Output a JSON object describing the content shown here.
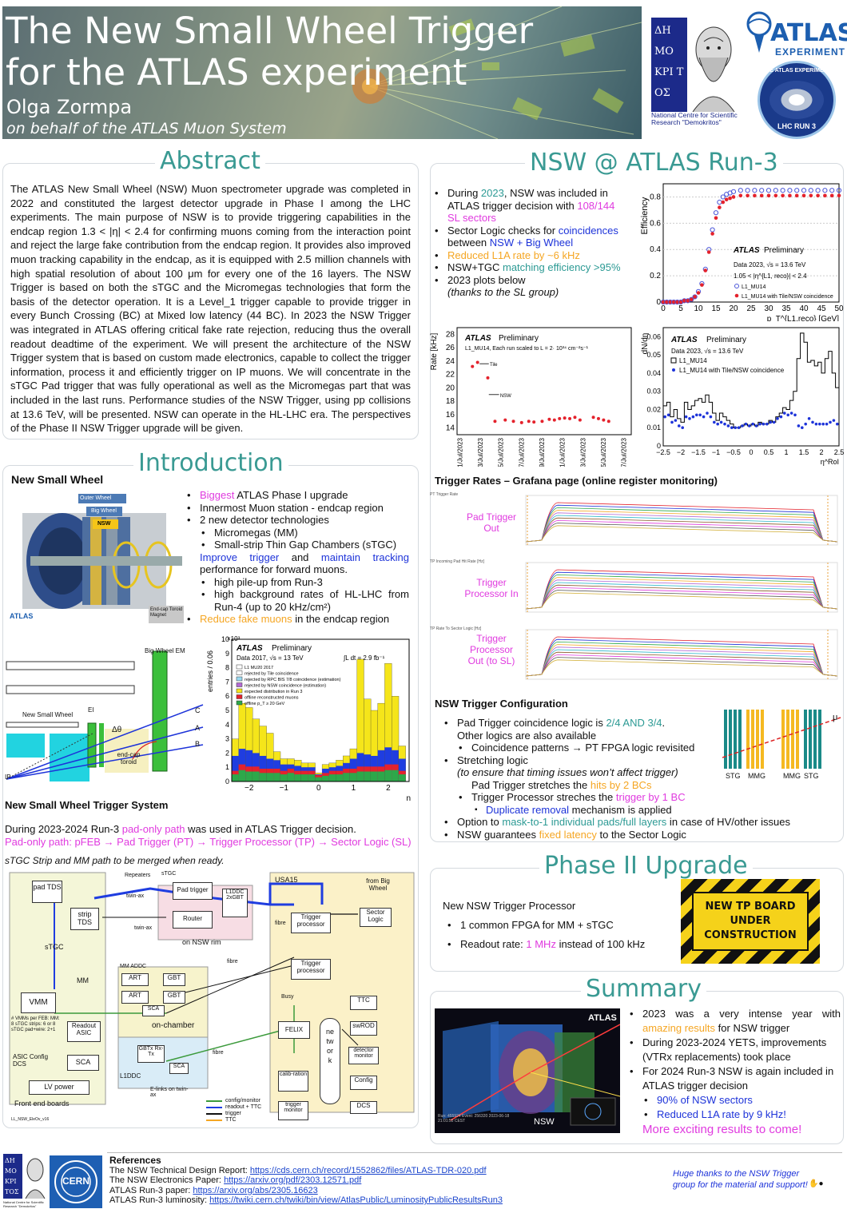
{
  "header": {
    "title_line1": "The New Small Wheel Trigger",
    "title_line2": "for the ATLAS experiment",
    "author": "Olga Zormpa",
    "affiliation": "on behalf of the ATLAS Muon System"
  },
  "logos": {
    "demokritos_caption": "National Centre for Scientific Research \"Demokritos\"",
    "demokritos_letters": "ΔΗ ΜΟ ΚΡΙ ΤΟΣ",
    "atlas_name": "ATLAS",
    "atlas_sub": "EXPERIMENT",
    "run3_badge_top": "THE ATLAS EXPERIMENT",
    "run3_badge_bottom": "LHC RUN 3",
    "cern": "CERN"
  },
  "abstract": {
    "heading": "Abstract",
    "text": "The ATLAS New Small Wheel (NSW) Muon spectrometer upgrade was completed in 2022 and constituted the largest detector upgrade in Phase I among the LHC experiments. The main purpose of NSW is to provide triggering capabilities in the endcap region 1.3 < |η| < 2.4 for confirming muons coming from the interaction point and reject the large fake contribution from the endcap region. It provides also improved muon tracking capability in the endcap, as it is equipped with 2.5 million channels with high spatial resolution of about 100 μm for every one of the 16 layers. The NSW Trigger is based on both the sTGC and the Micromegas technologies that form the basis of the detector operation. It is a Level_1 trigger capable to provide trigger in every Bunch Crossing (BC) at Mixed low latency (44 BC). In 2023 the NSW Trigger was integrated in ATLAS offering critical fake rate rejection, reducing thus the overall readout deadtime of the experiment. We will present the architecture of the NSW Trigger system that is based on custom made electronics, capable to collect the trigger information, process it and efficiently trigger on IP muons. We will concentrate in the sTGC Pad trigger that was fully operational as well as the Micromegas part that was included in the last runs. Performance studies of the NSW Trigger, using pp collisions at 13.6 TeV, will be presented. NSW can operate in the HL-LHC era. The perspectives of the Phase II NSW Trigger upgrade will be given."
  },
  "introduction": {
    "heading": "Introduction",
    "nsw_title": "New Small Wheel",
    "bullets": {
      "b1a": "Biggest",
      "b1b": " ATLAS Phase I upgrade",
      "b2": "Innermost Muon station - endcap region",
      "b3": "2 new detector technologies",
      "b3a": "Micromegas (MM)",
      "b3b": "Small-strip Thin Gap Chambers (sTGC)",
      "b4a": "Improve trigger",
      "b4b": " and ",
      "b4c": "maintain tracking",
      "b4d": " performance for forward muons.",
      "b4e": "high pile-up from Run-3",
      "b4f": "high background rates of HL-LHC from Run-4 (up to 20 kHz/cm²)",
      "b5a": "Reduce fake muons",
      "b5b": " in the endcap region"
    },
    "detector_labels": {
      "outer": "Outer Wheel",
      "big": "Big Wheel",
      "nsw": "NSW",
      "endcap": "End-cap Toroid Magnet",
      "atlas": "ATLAS",
      "atlas_sub": "EXPERIMENT"
    },
    "geometry_labels": {
      "bigwheel": "Big Wheel EM",
      "nsw": "New Small Wheel",
      "ei": "EI",
      "dtheta": "Δθ",
      "toroid": "end-cap toroid",
      "c": "C",
      "a": "A",
      "b": "B",
      "ip": "IP"
    },
    "sys_title": "New Small Wheel Trigger System",
    "sys_text1a": "During 2023-2024 Run-3 ",
    "sys_text1b": "pad-only path",
    "sys_text1c": " was used in ATLAS Trigger decision.",
    "sys_text2": "Pad-only path: pFEB → Pad Trigger (PT) → Trigger Processor (TP) → Sector Logic (SL)",
    "sys_text3": "sTGC Strip and MM path to be merged when ready."
  },
  "eta_hist": {
    "exp": "ATLAS",
    "prelim": "Preliminary",
    "data": "Data 2017,  √s = 13 TeV",
    "lumi": "∫L dt = 2.9 fb⁻¹",
    "ylabel": "entries / 0.06",
    "xlabel": "η",
    "scale": "×10³",
    "legend": [
      "L1 MU20 2017",
      "rejected by Tile coincidence",
      "rejected by RPC BIS 7/8 coincidence (estimation)",
      "rejected by NSW coincidence (estimation)",
      "expected distribution in Run 3",
      "offline reconstructed muons",
      "offline p_T ≥ 20 GeV"
    ],
    "ticks_x": [
      "−2",
      "−1",
      "0",
      "1",
      "2"
    ],
    "ticks_y": [
      "0",
      "1",
      "2",
      "3",
      "4",
      "5",
      "6",
      "7",
      "8",
      "9",
      "10"
    ]
  },
  "diagram": {
    "pad_tds": "pad TDS",
    "strip_tds": "strip TDS",
    "vmm": "VMM",
    "readout_asic": "Readout ASIC",
    "sca": "SCA",
    "lv": "LV power",
    "feb": "Front end boards",
    "stgc": "sTGC",
    "mm": "MM",
    "twin": "twin-ax",
    "pad_trigger": "Pad trigger",
    "router": "Router",
    "l1ddc": "L1DDC 2xGBT",
    "nsw_rim": "on NSW rim",
    "repeaters": "Repeaters",
    "mm_addc": "MM ADDC",
    "art": "ART",
    "gbt": "GBT",
    "gbtx": "GBTx Rx-Tx",
    "onchamber": "on-chamber",
    "l1ddc2": "L1DDC",
    "elinks": "E-links on twin-ax",
    "usa15": "USA15",
    "trigger_processor": "Trigger processor",
    "sector_logic": "Sector Logic",
    "big_wheel": "from Big Wheel",
    "felix": "FELIX",
    "network": "network",
    "ttc": "TTC",
    "swrod": "swROD",
    "detmon": "detector monitor",
    "config": "Config",
    "dcs": "DCS",
    "calib": "calib-ration",
    "trigmon": "trigger monitor",
    "fibre": "fibre",
    "busy": "Busy",
    "asic_cfg": "ASIC Config DCS",
    "vmm_note": "# VMMs per FEB: MM: 8 sTGC strips: 6 or 8 sTGC pad+wire: 2+1",
    "legend": [
      "config/monitor",
      "readout + TTC",
      "trigger",
      "TTC"
    ],
    "footer": "LL_NSW_EleOv_v16"
  },
  "run3": {
    "heading": "NSW @ ATLAS Run-3",
    "b1a": "During ",
    "b1b": "2023",
    "b1c": ", NSW was included in ATLAS trigger decision with ",
    "b1d": "108/144 SL sectors",
    "b2a": "Sector Logic checks for ",
    "b2b": "coincidences",
    "b2c": " between ",
    "b2d": "NSW + Big Wheel",
    "b3": "Reduced L1A rate by  ~6 kHz",
    "b4a": "NSW+TGC ",
    "b4b": "matching efficiency >95%",
    "b5": "2023 plots below",
    "b5b": "(thanks to the SL group)"
  },
  "eff_plot": {
    "exp": "ATLAS",
    "prelim": "Preliminary",
    "data": "Data 2023, √s = 13.6 TeV",
    "cut": "1.05 < |η^{L1, reco}| < 2.4",
    "series_a": "L1_MU14",
    "series_b": "L1_MU14 with Tile/NSW coincidence",
    "ylabel": "Efficiency",
    "xlabel": "p_T^{L1,reco} [GeV]",
    "ticks_x": [
      "0",
      "5",
      "10",
      "15",
      "20",
      "25",
      "30",
      "35",
      "40",
      "45",
      "50"
    ],
    "ticks_y": [
      "0",
      "0.2",
      "0.4",
      "0.6",
      "0.8"
    ]
  },
  "rate_plot": {
    "exp": "ATLAS",
    "prelim": "Preliminary",
    "note": "L1_MU14, Each run scaled to L = 2· 10³⁴ cm⁻²s⁻¹",
    "ylabel": "Rate [kHz]",
    "tile_label": "Tile",
    "nsw_label": "NSW",
    "ticks_y": [
      "14",
      "16",
      "18",
      "20",
      "22",
      "24",
      "26",
      "28"
    ],
    "ticks_x": [
      "1/Jul/2023",
      "3/Jul/2023",
      "5/Jul/2023",
      "7/Jul/2023",
      "9/Jul/2023",
      "11/Jul/2023",
      "13/Jul/2023",
      "15/Jul/2023",
      "17/Jul/2023"
    ]
  },
  "dndeta_plot": {
    "exp": "ATLAS",
    "prelim": "Preliminary",
    "data": "Data 2023, √s = 13.6 TeV",
    "series_a": "L1_MU14",
    "series_b": "L1_MU14 with Tile/NSW coincidence",
    "ylabel": "dN/dη",
    "xlabel": "η^RoI",
    "ticks_x": [
      "−2.5",
      "−2",
      "−1.5",
      "−1",
      "−0.5",
      "0",
      "0.5",
      "1",
      "1.5",
      "2",
      "2.5"
    ],
    "ticks_y": [
      "0",
      "0.01",
      "0.02",
      "0.03",
      "0.04",
      "0.05",
      "0.06"
    ]
  },
  "grafana": {
    "title": "Trigger Rates – Grafana page (online register monitoring)",
    "panels": [
      {
        "label": "Pad Trigger Out",
        "header": "PT Trigger Rate"
      },
      {
        "label": "Trigger Processor In",
        "header": "TP Incoming Pad Hit Rate [Hz]"
      },
      {
        "label": "Trigger Processor Out (to SL)",
        "header": "TP Rate To Sector Logic [Hz]"
      }
    ]
  },
  "config": {
    "title": "NSW Trigger Configuration",
    "c1a": "Pad Trigger coincidence logic is ",
    "c1b": "2/4 AND 3/4",
    "c1c": ".",
    "c1d": "Other logics are also available",
    "c2": "Coincidence patterns → PT FPGA logic revisited",
    "c3": "Stretching logic",
    "c3b": "(to ensure that timing issues won’t affect trigger)",
    "c4a": "Pad Trigger stretches the ",
    "c4b": "hits by 2 BCs",
    "c5a": "Trigger Processor streches the ",
    "c5b": "trigger by 1 BC",
    "c6a": "Duplicate removal",
    "c6b": " mechanism is applied",
    "c7a": "Option to ",
    "c7b": "mask-to-1 individual pads/full layers",
    "c7c": " in case of HV/other issues",
    "c8a": "NSW guarantees ",
    "c8b": "fixed latency",
    "c8c": " to the Sector Logic",
    "layers": [
      "STG",
      "MMG",
      "MMG",
      "STG"
    ],
    "mu": "μ"
  },
  "phase2": {
    "heading": "Phase II Upgrade",
    "title": "New NSW Trigger Processor",
    "b1": "1 common FPGA for MM + sTGC",
    "b2a": "Readout rate: ",
    "b2b": "1 MHz",
    "b2c": " instead of 100 kHz",
    "sign": "NEW TP BOARD UNDER CONSTRUCTION"
  },
  "summary": {
    "heading": "Summary",
    "s1a": "2023 was a very intense year with ",
    "s1b": "amazing results",
    "s1c": " for NSW trigger",
    "s2": "During 2023-2024 YETS, improvements (VTRx replacements) took place",
    "s3": "For 2024 Run-3 NSW is again included in ATLAS trigger decision",
    "s4": "90% of NSW sectors",
    "s5": "Reduced L1A rate by 9 kHz!",
    "s6": "More exciting results to come!",
    "evt_nsw": "NSW",
    "evt_info": "Run: 455924  Event: 256320  2023-06-18 21:01:55 CEST"
  },
  "references": {
    "title": "References",
    "r1a": "The NSW Technical Design Report: ",
    "r1b": "https://cds.cern.ch/record/1552862/files/ATLAS-TDR-020.pdf",
    "r2a": "The NSW Electronics Paper: ",
    "r2b": "https://arxiv.org/pdf/2303.12571.pdf",
    "r3a": "ATLAS Run-3 paper: ",
    "r3b": "https://arxiv.org/abs/2305.16623",
    "r4a": "ATLAS Run-3 luminosity: ",
    "r4b": "https://twiki.cern.ch/twiki/bin/view/AtlasPublic/LuminosityPublicResultsRun3",
    "thanks": "Huge thanks to the NSW Trigger group for the material and support!"
  },
  "chart_data": [
    {
      "type": "scatter",
      "title": "",
      "xlabel": "p_T^{L1,reco} [GeV]",
      "ylabel": "Efficiency",
      "xlim": [
        0,
        50
      ],
      "ylim": [
        0,
        0.9
      ],
      "x": [
        0,
        1,
        2,
        3,
        4,
        5,
        6,
        7,
        8,
        9,
        10,
        11,
        12,
        13,
        14,
        15,
        16,
        17,
        18,
        19,
        20,
        22,
        24,
        26,
        28,
        30,
        32,
        34,
        36,
        38,
        40,
        42,
        44,
        46,
        48,
        50
      ],
      "series": [
        {
          "name": "L1_MU14",
          "values": [
            0.0,
            0.0,
            0.0,
            0.0,
            0.0,
            0.0,
            0.01,
            0.01,
            0.02,
            0.04,
            0.08,
            0.14,
            0.25,
            0.4,
            0.55,
            0.68,
            0.76,
            0.8,
            0.82,
            0.83,
            0.84,
            0.85,
            0.85,
            0.85,
            0.85,
            0.85,
            0.85,
            0.85,
            0.85,
            0.85,
            0.85,
            0.85,
            0.85,
            0.85,
            0.85,
            0.85
          ]
        },
        {
          "name": "L1_MU14 with Tile/NSW coincidence",
          "values": [
            0.0,
            0.0,
            0.0,
            0.0,
            0.0,
            0.0,
            0.01,
            0.01,
            0.02,
            0.04,
            0.07,
            0.13,
            0.24,
            0.38,
            0.52,
            0.64,
            0.72,
            0.76,
            0.78,
            0.79,
            0.8,
            0.81,
            0.81,
            0.81,
            0.81,
            0.81,
            0.81,
            0.81,
            0.81,
            0.81,
            0.81,
            0.81,
            0.81,
            0.81,
            0.81,
            0.81
          ]
        }
      ]
    },
    {
      "type": "scatter",
      "title": "",
      "ylabel": "Rate [kHz]",
      "xlabel": "",
      "ylim": [
        13,
        29
      ],
      "x": [
        "2/Jul/2023",
        "2.5/Jul/2023",
        "3.5/Jul/2023",
        "4.2/Jul/2023",
        "5.2/Jul/2023",
        "6/Jul/2023",
        "6.8/Jul/2023",
        "7.5/Jul/2023",
        "8/Jul/2023",
        "8.8/Jul/2023",
        "9.5/Jul/2023",
        "10/Jul/2023",
        "10.5/Jul/2023",
        "11/Jul/2023",
        "11.5/Jul/2023",
        "12/Jul/2023",
        "12.5/Jul/2023",
        "13.8/Jul/2023",
        "14.3/Jul/2023",
        "14.8/Jul/2023",
        "15.3/Jul/2023"
      ],
      "series": [
        {
          "name": "",
          "values": [
            23.2,
            23.8,
            21.5,
            15.0,
            15.2,
            15.0,
            14.8,
            15.0,
            14.9,
            15.0,
            15.3,
            15.2,
            15.4,
            15.5,
            15.4,
            15.6,
            15.2,
            15.6,
            15.4,
            15.2,
            15.0
          ]
        }
      ]
    },
    {
      "type": "bar",
      "title": "",
      "xlabel": "η^RoI",
      "ylabel": "dN/dη",
      "xlim": [
        -2.5,
        2.5
      ],
      "ylim": [
        0,
        0.065
      ],
      "x": [
        -2.45,
        -2.35,
        -2.25,
        -2.15,
        -2.05,
        -1.95,
        -1.85,
        -1.75,
        -1.65,
        -1.55,
        -1.45,
        -1.35,
        -1.25,
        -1.15,
        -1.05,
        -0.95,
        -0.85,
        -0.75,
        -0.65,
        -0.55,
        -0.45,
        -0.35,
        -0.25,
        -0.15,
        -0.05,
        0.05,
        0.15,
        0.25,
        0.35,
        0.45,
        0.55,
        0.65,
        0.75,
        0.85,
        0.95,
        1.05,
        1.15,
        1.25,
        1.35,
        1.45,
        1.55,
        1.65,
        1.75,
        1.85,
        1.95,
        2.05,
        2.15,
        2.25,
        2.35,
        2.45
      ],
      "series": [
        {
          "name": "L1_MU14",
          "values": [
            0.022,
            0.024,
            0.016,
            0.02,
            0.015,
            0.013,
            0.024,
            0.02,
            0.022,
            0.025,
            0.026,
            0.024,
            0.028,
            0.024,
            0.018,
            0.014,
            0.018,
            0.016,
            0.014,
            0.012,
            0.01,
            0.01,
            0.011,
            0.012,
            0.011,
            0.012,
            0.011,
            0.013,
            0.012,
            0.012,
            0.014,
            0.013,
            0.016,
            0.018,
            0.021,
            0.02,
            0.025,
            0.03,
            0.048,
            0.062,
            0.057,
            0.046,
            0.047,
            0.044,
            0.046,
            0.04,
            0.048,
            0.052,
            0.04,
            0.032
          ]
        },
        {
          "name": "L1_MU14 with Tile/NSW coincidence",
          "values": [
            0.016,
            0.017,
            0.013,
            0.014,
            0.011,
            0.01,
            0.016,
            0.015,
            0.016,
            0.017,
            0.017,
            0.016,
            0.018,
            0.016,
            0.013,
            0.012,
            0.013,
            0.012,
            0.011,
            0.01,
            0.01,
            0.01,
            0.011,
            0.012,
            0.011,
            0.012,
            0.011,
            0.012,
            0.012,
            0.012,
            0.013,
            0.013,
            0.015,
            0.016,
            0.018,
            0.017,
            0.018,
            0.017,
            0.011,
            0.01,
            0.012,
            0.015,
            0.013,
            0.012,
            0.012,
            0.012,
            0.012,
            0.013,
            0.014,
            0.012
          ]
        }
      ]
    },
    {
      "type": "bar",
      "title": "",
      "xlabel": "η",
      "ylabel": "entries / 0.06",
      "xlim": [
        -2.5,
        2.6
      ],
      "ylim": [
        0,
        10
      ],
      "x": [
        -2.4,
        -2.2,
        -2.0,
        -1.8,
        -1.6,
        -1.4,
        -1.2,
        -1.0,
        -0.8,
        -0.6,
        -0.4,
        -0.2,
        0.0,
        0.2,
        0.4,
        0.6,
        0.8,
        1.0,
        1.2,
        1.4,
        1.6,
        1.8,
        2.0,
        2.2,
        2.4
      ],
      "series": [
        {
          "name": "L1 MU20 2017",
          "values": [
            3.0,
            5.5,
            5.2,
            4.4,
            3.9,
            3.4,
            2.1,
            1.6,
            1.6,
            1.5,
            1.3,
            1.3,
            0.6,
            1.2,
            1.3,
            1.5,
            1.8,
            2.3,
            8.6,
            5.8,
            5.0,
            5.5,
            8.3,
            6.0,
            2.5
          ]
        },
        {
          "name": "expected distribution in Run 3",
          "values": [
            1.8,
            2.3,
            2.2,
            2.0,
            1.8,
            1.6,
            1.5,
            1.2,
            1.2,
            1.1,
            1.0,
            1.0,
            0.5,
            0.9,
            1.0,
            1.1,
            1.3,
            1.6,
            2.0,
            1.9,
            1.8,
            2.2,
            2.4,
            2.2,
            1.6
          ]
        },
        {
          "name": "offline reconstructed muons",
          "values": [
            0.5,
            0.8,
            0.7,
            0.7,
            0.6,
            0.6,
            0.6,
            0.5,
            0.6,
            0.5,
            0.5,
            0.5,
            0.3,
            0.4,
            0.5,
            0.5,
            0.6,
            0.6,
            0.7,
            0.7,
            0.7,
            0.7,
            0.8,
            0.8,
            0.5
          ]
        }
      ]
    }
  ]
}
